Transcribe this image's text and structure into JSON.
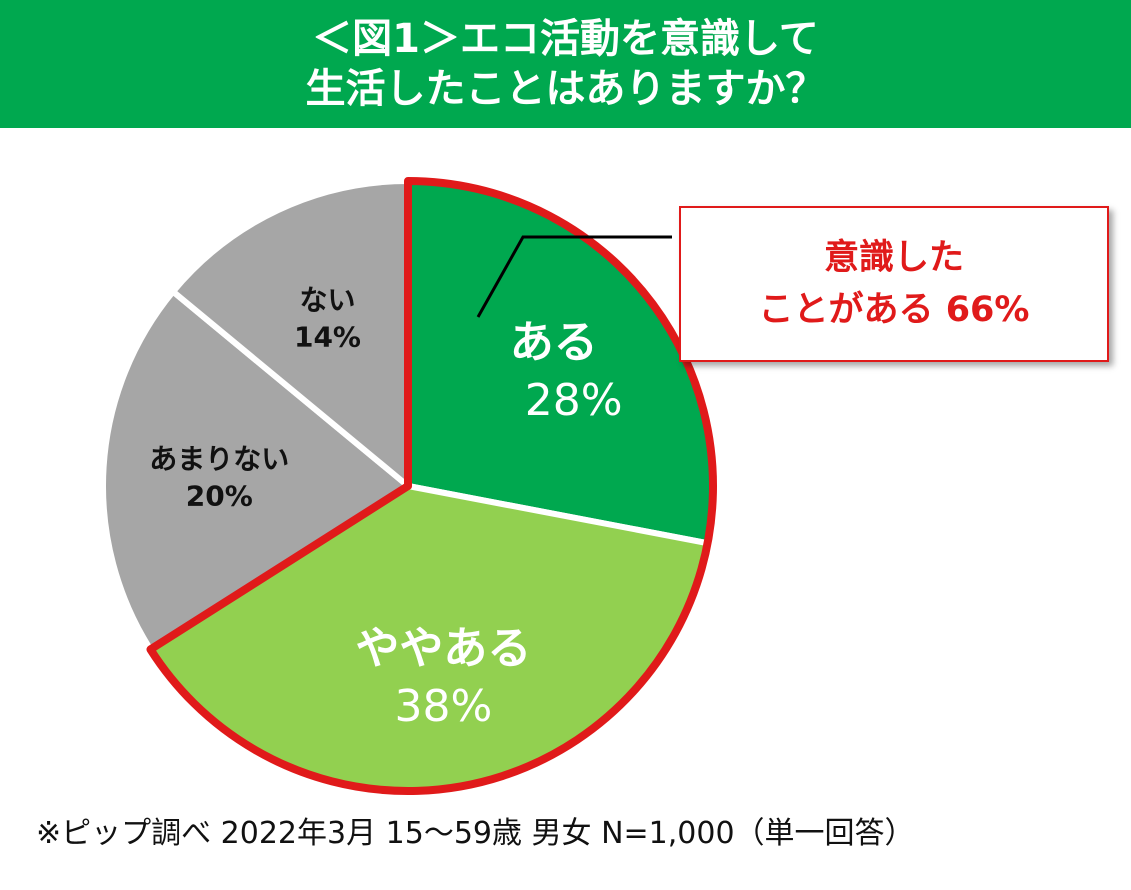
{
  "header": {
    "title_line1": "＜図1＞エコ活動を意識して",
    "title_line2": "生活したことはありますか？"
  },
  "chart_data": {
    "type": "pie",
    "start_angle_deg": 0,
    "direction": "clockwise",
    "slices": [
      {
        "name": "ある",
        "value": 28,
        "label": "28%",
        "color": "#00a84f",
        "text_color": "#ffffff"
      },
      {
        "name": "ややある",
        "value": 38,
        "label": "38%",
        "color": "#92d050",
        "text_color": "#ffffff"
      },
      {
        "name": "あまりない",
        "value": 20,
        "label": "20%",
        "color": "#a6a6a6",
        "text_color": "#111111"
      },
      {
        "name": "ない",
        "value": 14,
        "label": "14%",
        "color": "#a6a6a6",
        "text_color": "#111111"
      }
    ],
    "highlight": {
      "slices": [
        "ある",
        "ややある"
      ],
      "outline_color": "#e01a1a"
    }
  },
  "callout": {
    "line1": "意識した",
    "line2": "ことがある 66%"
  },
  "footnote": "※ピップ調べ 2022年3月 15～59歳 男女 N=1,000（単一回答）"
}
